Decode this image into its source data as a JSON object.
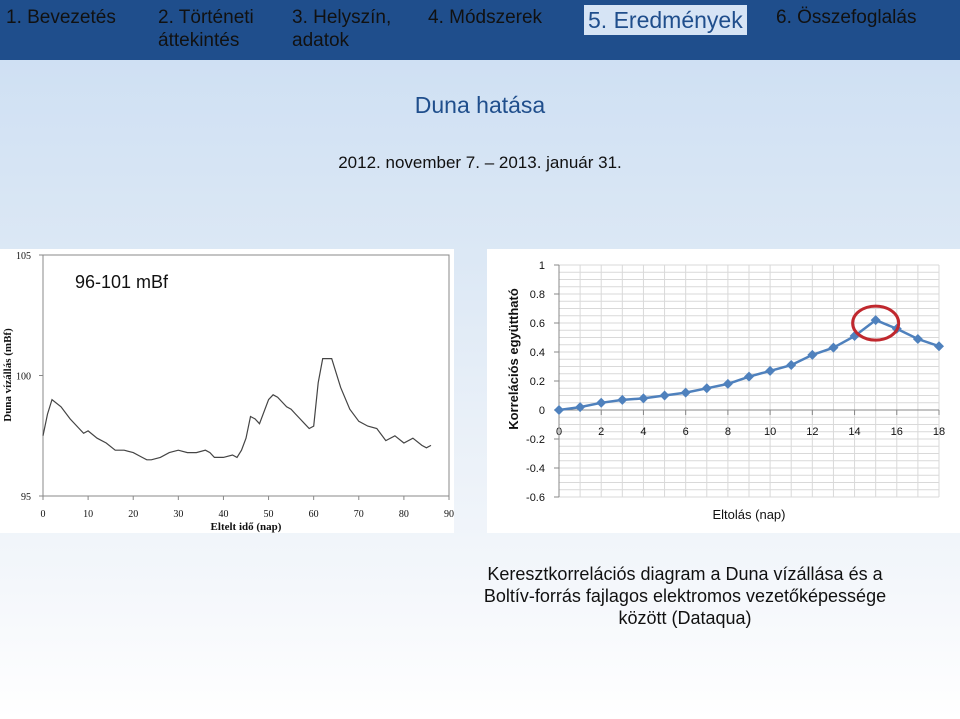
{
  "nav": {
    "tabs": [
      {
        "label": "1. Bevezetés",
        "active": false
      },
      {
        "label": "2. Történeti áttekintés",
        "active": false
      },
      {
        "label": "3. Helyszín, adatok",
        "active": false
      },
      {
        "label": "4. Módszerek",
        "active": false
      },
      {
        "label": "5. Eredmények",
        "active": true
      },
      {
        "label": "6. Összefoglalás",
        "active": false
      }
    ]
  },
  "slide": {
    "title": "Duna hatása",
    "date_range": "2012. november 7. – 2013. január 31.",
    "caption_lines": [
      "Keresztkorrelációs diagram a Duna vízállása és a",
      "Boltív-forrás fajlagos elektromos vezetőképessége",
      "között (Dataqua)"
    ]
  },
  "colors": {
    "nav_bar": "#1f4e8c",
    "series": "#4f81bd",
    "highlight_ring": "#c0282e",
    "water_line": "#444444"
  },
  "chart_data": [
    {
      "type": "line",
      "annotation": "96-101 mBf",
      "xlabel": "Eltelt idő (nap)",
      "ylabel": "Duna vízállás (mBf)",
      "xlim": [
        0,
        90
      ],
      "ylim": [
        95,
        105
      ],
      "xticks": [
        0,
        10,
        20,
        30,
        40,
        50,
        60,
        70,
        80,
        90
      ],
      "yticks": [
        95,
        100,
        105
      ],
      "series": [
        {
          "x": [
            0,
            1,
            2,
            4,
            6,
            8,
            9,
            10,
            12,
            14,
            16,
            18,
            20,
            22,
            23,
            24,
            26,
            28,
            30,
            32,
            34,
            36,
            37,
            38,
            40,
            42,
            43,
            44,
            45,
            46,
            47,
            48,
            50,
            51,
            52,
            53,
            54,
            55,
            56,
            57,
            58,
            59,
            60,
            61,
            62,
            64,
            66,
            68,
            70,
            72,
            74,
            76,
            78,
            80,
            82,
            84,
            85,
            86
          ],
          "values": [
            97.5,
            98.4,
            99.0,
            98.7,
            98.2,
            97.8,
            97.6,
            97.7,
            97.4,
            97.2,
            96.9,
            96.9,
            96.8,
            96.6,
            96.5,
            96.5,
            96.6,
            96.8,
            96.9,
            96.8,
            96.8,
            96.9,
            96.8,
            96.6,
            96.6,
            96.7,
            96.6,
            96.9,
            97.4,
            98.3,
            98.2,
            98.0,
            99.0,
            99.2,
            99.1,
            98.9,
            98.7,
            98.6,
            98.4,
            98.2,
            98.0,
            97.8,
            97.9,
            99.7,
            100.7,
            100.7,
            99.5,
            98.6,
            98.1,
            97.9,
            97.8,
            97.3,
            97.5,
            97.2,
            97.4,
            97.1,
            97.0,
            97.1
          ]
        }
      ]
    },
    {
      "type": "line",
      "xlabel": "Eltolás (nap)",
      "ylabel": "Korrelációs együttható",
      "xlim": [
        0,
        18
      ],
      "ylim": [
        -0.6,
        1
      ],
      "xticks": [
        0,
        2,
        4,
        6,
        8,
        10,
        12,
        14,
        16,
        18
      ],
      "xtick_labels": [
        "0",
        "2",
        "4",
        "6",
        "8",
        "10",
        "12",
        "14",
        "16",
        "18"
      ],
      "yticks": [
        -0.6,
        -0.4,
        -0.2,
        0,
        0.2,
        0.4,
        0.6,
        0.8,
        1
      ],
      "ytick_labels": [
        "-0.6",
        "-0.4",
        "-0.2",
        "0",
        "0.2",
        "0.4",
        "0.6",
        "0.8",
        "1"
      ],
      "grid": true,
      "highlight_x": 15,
      "series": [
        {
          "x": [
            0,
            1,
            2,
            3,
            4,
            5,
            6,
            7,
            8,
            9,
            10,
            11,
            12,
            13,
            14,
            15,
            16,
            17,
            18
          ],
          "values": [
            0.0,
            0.02,
            0.05,
            0.07,
            0.08,
            0.1,
            0.12,
            0.15,
            0.18,
            0.23,
            0.27,
            0.31,
            0.38,
            0.43,
            0.51,
            0.62,
            0.56,
            0.49,
            0.44
          ]
        }
      ]
    }
  ]
}
